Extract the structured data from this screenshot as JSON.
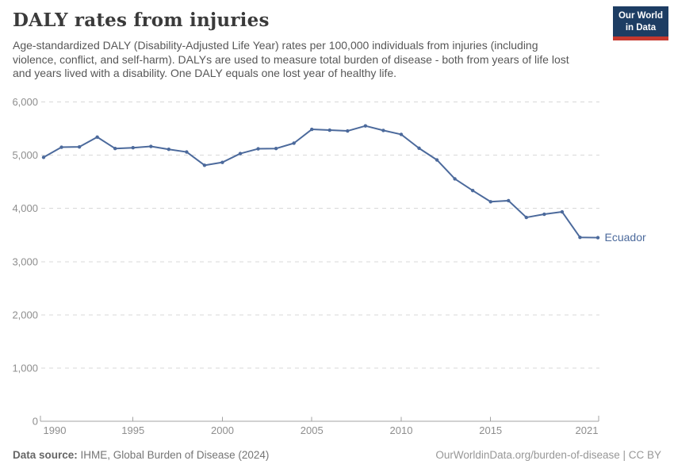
{
  "header": {
    "title": "DALY rates from injuries",
    "subtitle": "Age-standardized DALY (Disability-Adjusted Life Year) rates per 100,000 individuals from injuries (including violence, conflict, and self-harm). DALYs are used to measure total burden of disease - both from years of life lost and years lived with a disability. One DALY equals one lost year of healthy life.",
    "logo_line1": "Our World",
    "logo_line2": "in Data"
  },
  "chart_data": {
    "type": "line",
    "title": "DALY rates from injuries",
    "xlabel": "",
    "ylabel": "",
    "x": [
      1990,
      1991,
      1992,
      1993,
      1994,
      1995,
      1996,
      1997,
      1998,
      1999,
      2000,
      2001,
      2002,
      2003,
      2004,
      2005,
      2006,
      2007,
      2008,
      2009,
      2010,
      2011,
      2012,
      2013,
      2014,
      2015,
      2016,
      2017,
      2018,
      2019,
      2020,
      2021
    ],
    "series": [
      {
        "name": "Ecuador",
        "color": "#4C6A9C",
        "values": [
          4960,
          5150,
          5155,
          5340,
          5125,
          5140,
          5165,
          5110,
          5060,
          4810,
          4865,
          5030,
          5120,
          5125,
          5225,
          5485,
          5470,
          5455,
          5550,
          5465,
          5390,
          5130,
          4910,
          4555,
          4335,
          4125,
          4145,
          3830,
          3890,
          3935,
          3455,
          3450
        ]
      }
    ],
    "x_ticks": [
      1990,
      1995,
      2000,
      2005,
      2010,
      2015,
      2021
    ],
    "y_ticks": [
      0,
      1000,
      2000,
      3000,
      4000,
      5000,
      6000
    ],
    "xlim": [
      1990,
      2021
    ],
    "ylim": [
      0,
      6000
    ],
    "grid": "horizontal-dashed",
    "legend_position": "end-of-line-label",
    "entity_label": "Ecuador"
  },
  "footer": {
    "source_label": "Data source:",
    "source_text": "IHME, Global Burden of Disease (2024)",
    "credit": "OurWorldinData.org/burden-of-disease | CC BY"
  },
  "colors": {
    "line": "#4C6A9C",
    "grid": "#d8d8d8",
    "axis": "#a3a3a3",
    "tick_label": "#8e8e8e",
    "title_text": "#3a3a3a",
    "subtitle_text": "#575757",
    "logo_bg": "#1d3d63",
    "logo_accent": "#c5382e"
  }
}
